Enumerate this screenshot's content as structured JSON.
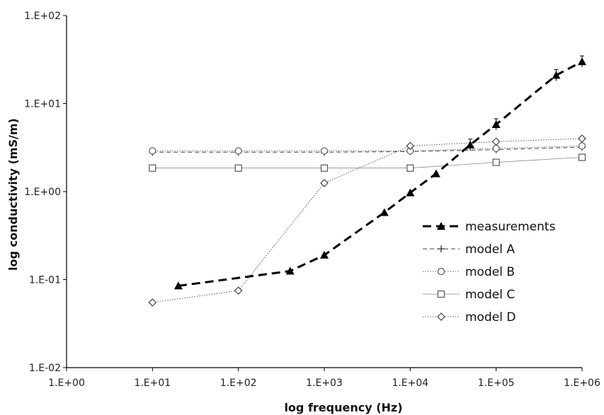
{
  "chart_data": {
    "type": "line",
    "xscale": "log",
    "yscale": "log",
    "xlim": [
      1,
      1000000
    ],
    "ylim": [
      0.01,
      100
    ],
    "xlabel": "log frequency (Hz)",
    "ylabel": "log conductivity (mS/m)",
    "x_tick_labels": [
      "1.E+00",
      "1.E+01",
      "1.E+02",
      "1.E+03",
      "1.E+04",
      "1.E+05",
      "1.E+06"
    ],
    "y_tick_labels": [
      "1.E-02",
      "1.E-01",
      "1.E+00",
      "1.E+01",
      "1.E+02"
    ],
    "grid": false,
    "legend_position": "right",
    "series": [
      {
        "name": "measurements",
        "marker": "triangle",
        "line": "heavy-dashed",
        "color": "#000000",
        "x": [
          20,
          400,
          1000,
          5000,
          10000,
          20000,
          50000,
          100000,
          500000,
          1000000
        ],
        "y": [
          0.085,
          0.125,
          0.19,
          0.58,
          0.97,
          1.6,
          3.4,
          5.8,
          21,
          30
        ],
        "error_bars": true
      },
      {
        "name": "model A",
        "marker": "plus",
        "line": "dashed",
        "color": "#444444",
        "x": [
          10,
          100,
          1000,
          10000,
          100000,
          1000000
        ],
        "y": [
          2.8,
          2.8,
          2.8,
          2.85,
          3.0,
          3.2
        ]
      },
      {
        "name": "model B",
        "marker": "circle",
        "line": "dotted",
        "color": "#666666",
        "x": [
          10,
          100,
          1000,
          10000,
          100000,
          1000000
        ],
        "y": [
          2.9,
          2.9,
          2.9,
          2.9,
          3.1,
          3.3
        ]
      },
      {
        "name": "model C",
        "marker": "square",
        "line": "thin",
        "color": "#888888",
        "x": [
          10,
          100,
          1000,
          10000,
          100000,
          1000000
        ],
        "y": [
          1.85,
          1.85,
          1.85,
          1.85,
          2.15,
          2.45
        ]
      },
      {
        "name": "model D",
        "marker": "diamond",
        "line": "dotted",
        "color": "#555555",
        "x": [
          10,
          100,
          1000,
          10000,
          100000,
          1000000
        ],
        "y": [
          0.055,
          0.075,
          1.25,
          3.3,
          3.7,
          4.0
        ]
      }
    ]
  }
}
